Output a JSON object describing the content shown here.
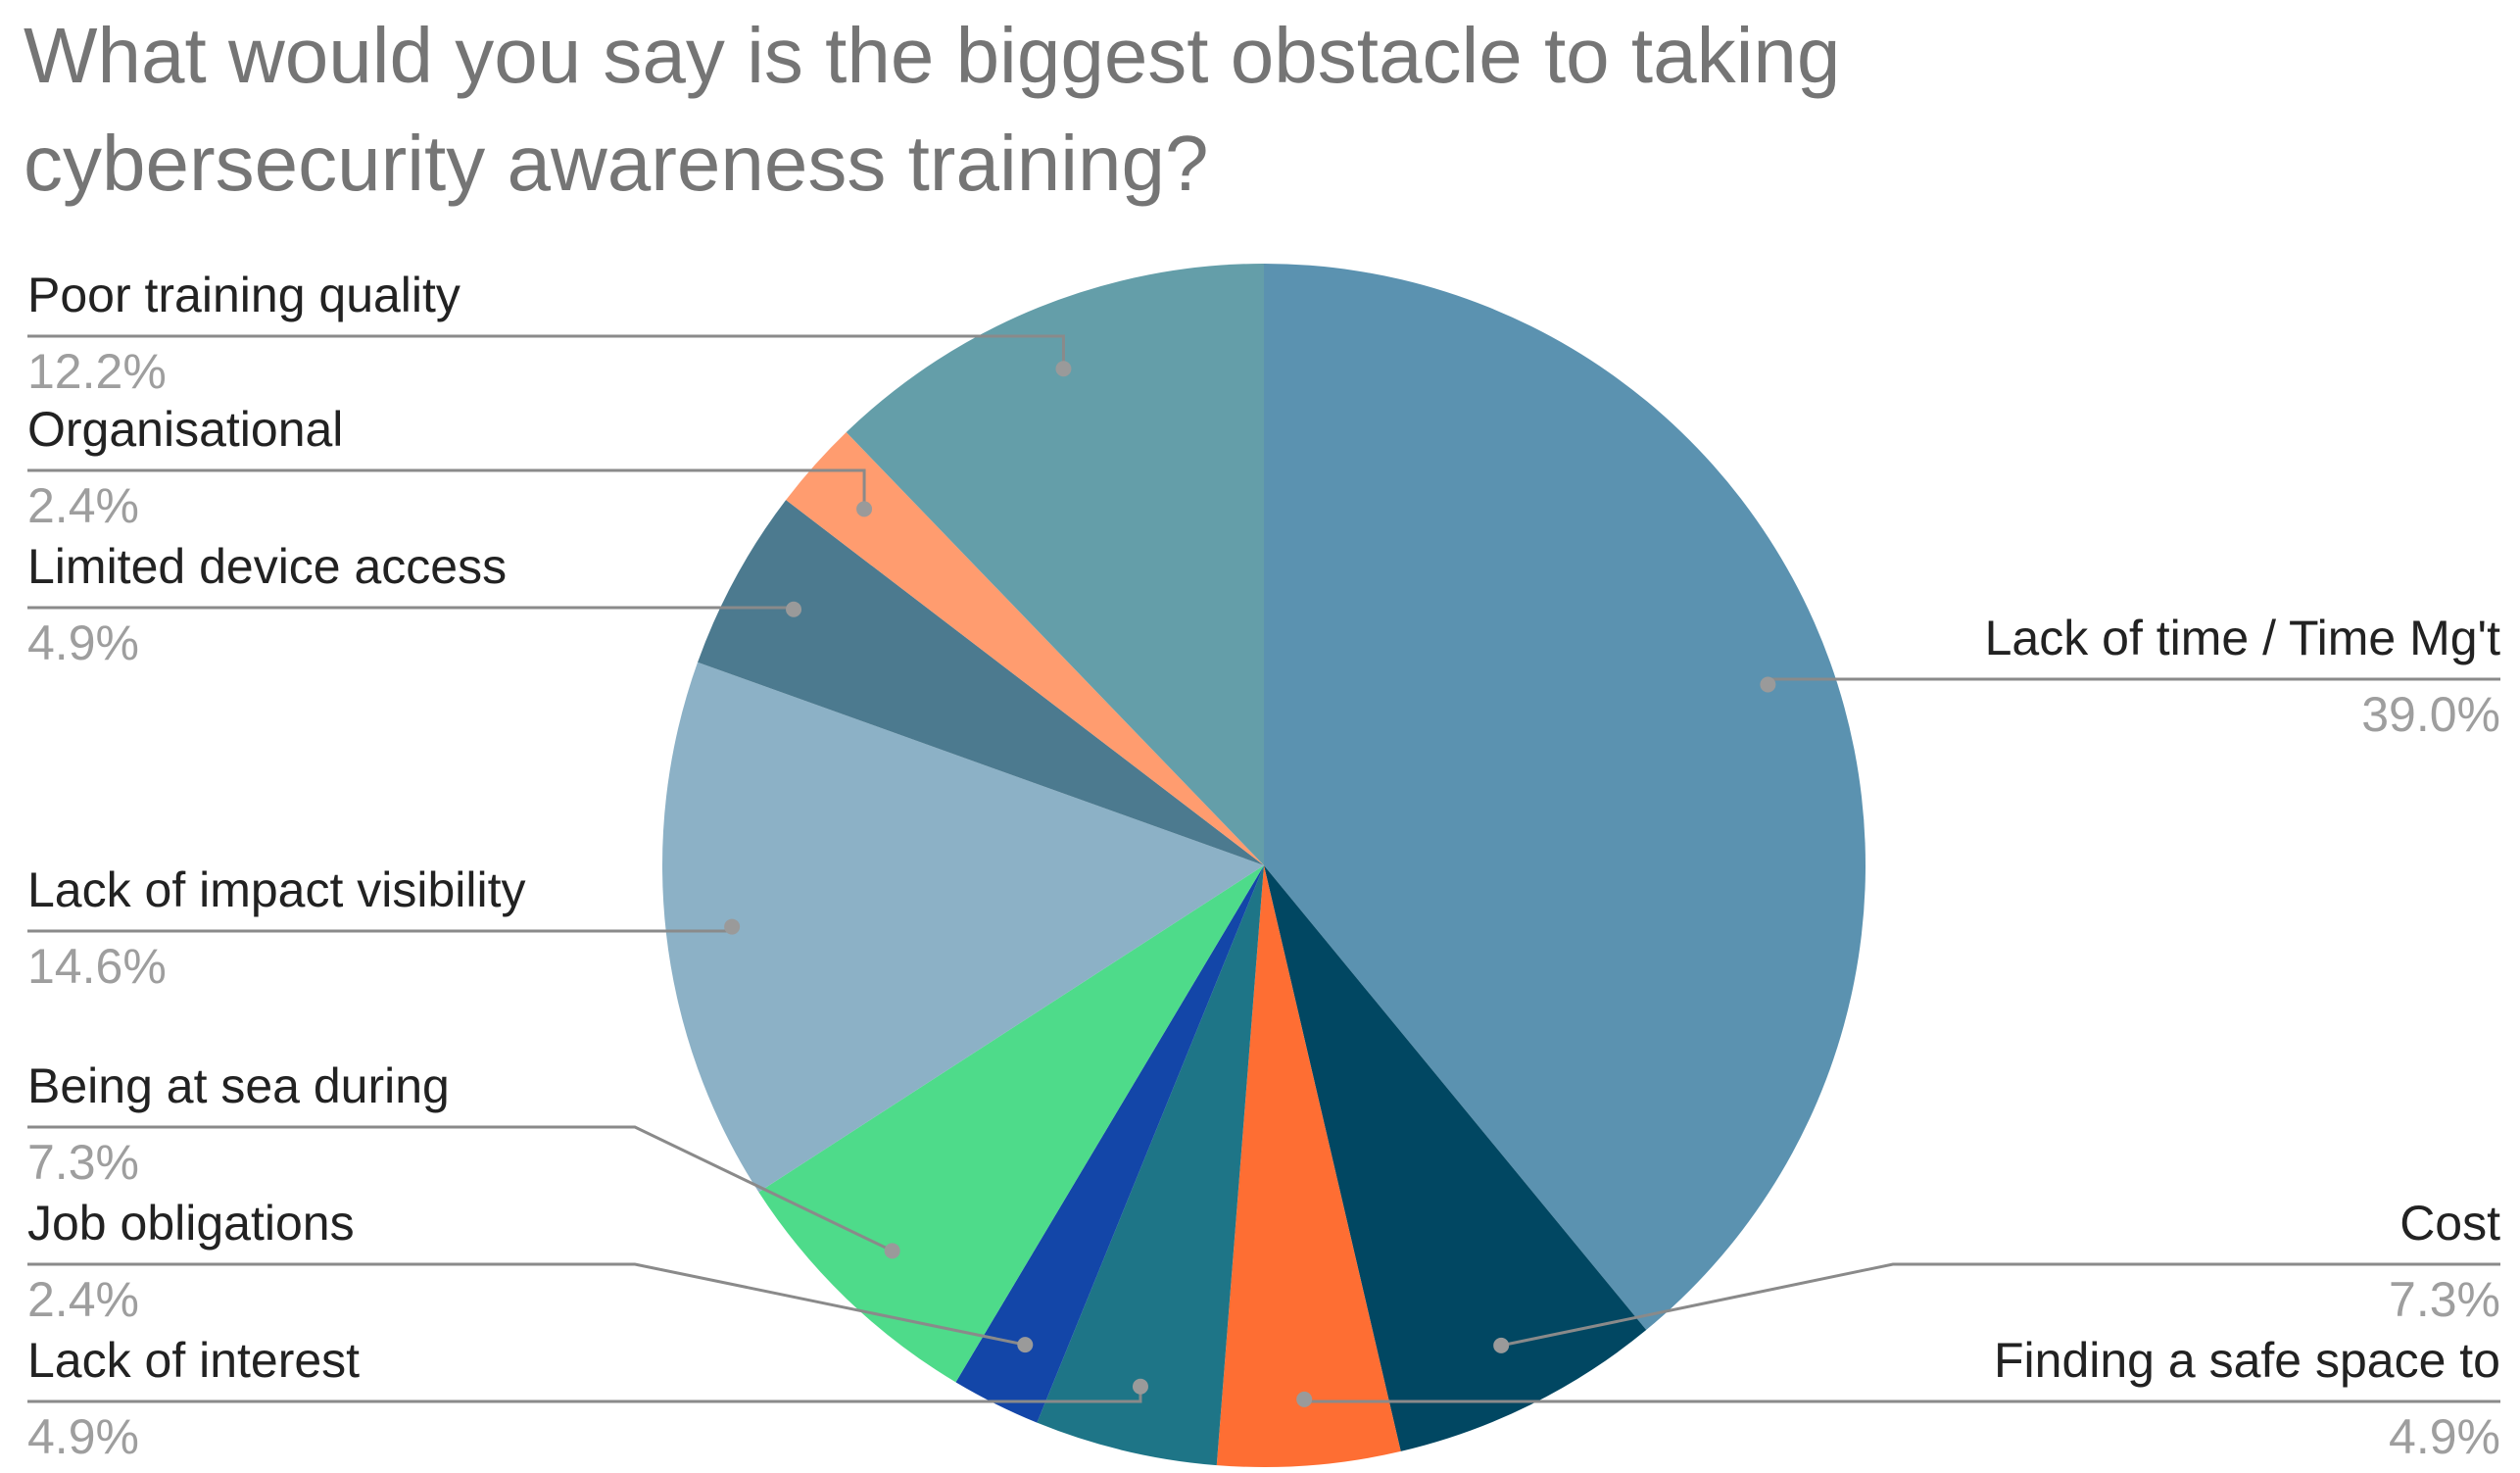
{
  "chart_data": {
    "type": "pie",
    "title_lines": [
      "What would you say is the biggest obstacle to taking",
      "cybersecurity awareness training?"
    ],
    "start_angle_deg": 0,
    "direction": "clockwise",
    "slices": [
      {
        "label": "Lack of time / Time Mg't",
        "pct_label": "39.0%",
        "value": 39.0,
        "color": "#5b92b0"
      },
      {
        "label": "Cost",
        "pct_label": "7.3%",
        "value": 7.3,
        "color": "#014762"
      },
      {
        "label": "Finding a safe space to",
        "pct_label": "4.9%",
        "value": 4.9,
        "color": "#fe6e33"
      },
      {
        "label": "Lack of interest",
        "pct_label": "4.9%",
        "value": 4.9,
        "color": "#1e7587"
      },
      {
        "label": "Job obligations",
        "pct_label": "2.4%",
        "value": 2.4,
        "color": "#1346a8"
      },
      {
        "label": "Being at sea during",
        "pct_label": "7.3%",
        "value": 7.3,
        "color": "#4edb8a"
      },
      {
        "label": "Lack of impact visibility",
        "pct_label": "14.6%",
        "value": 14.6,
        "color": "#8cb1c6"
      },
      {
        "label": "Limited device access",
        "pct_label": "4.9%",
        "value": 4.9,
        "color": "#4c7a8f"
      },
      {
        "label": "Organisational",
        "pct_label": "2.4%",
        "value": 2.4,
        "color": "#ff9c6f"
      },
      {
        "label": "Poor training quality",
        "pct_label": "12.2%",
        "value": 12.2,
        "color": "#649ea9"
      }
    ]
  }
}
